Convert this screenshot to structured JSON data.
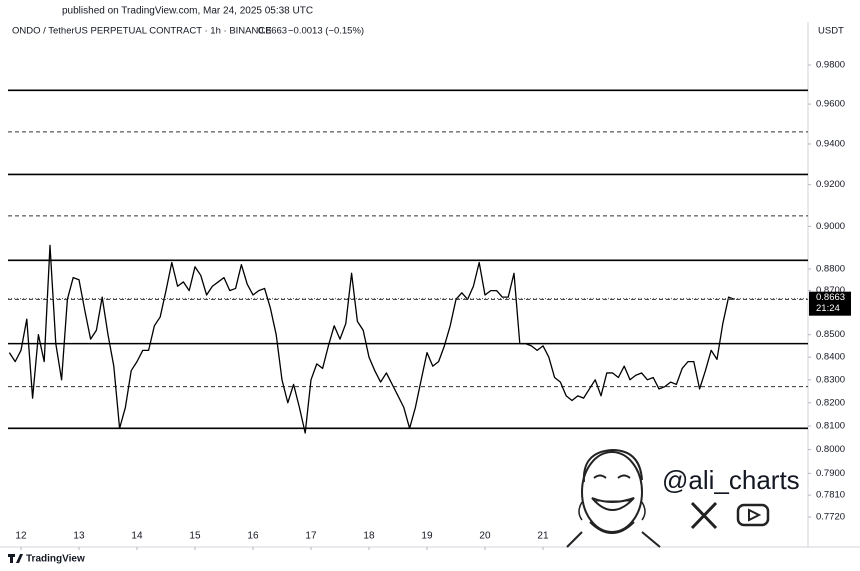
{
  "header": {
    "published": "published on TradingView.com, Mar 24, 2025 05:38 UTC",
    "symbol": "ONDO / TetherUS PERPETUAL CONTRACT · 1h · BINANCE",
    "price": "0.8663",
    "change": "−0.0013 (−0.15%)",
    "currency": "USDT"
  },
  "chart_data": {
    "type": "line",
    "color": "#000000",
    "log_scale": true,
    "x": [
      11.8,
      11.9,
      12.0,
      12.1,
      12.2,
      12.3,
      12.4,
      12.5,
      12.6,
      12.7,
      12.8,
      12.9,
      13.0,
      13.1,
      13.2,
      13.3,
      13.4,
      13.5,
      13.6,
      13.7,
      13.8,
      13.9,
      14.0,
      14.1,
      14.2,
      14.3,
      14.4,
      14.5,
      14.6,
      14.7,
      14.8,
      14.9,
      15.0,
      15.1,
      15.2,
      15.3,
      15.4,
      15.5,
      15.6,
      15.7,
      15.8,
      15.9,
      16.0,
      16.1,
      16.2,
      16.3,
      16.4,
      16.5,
      16.6,
      16.7,
      16.8,
      16.9,
      17.0,
      17.1,
      17.2,
      17.3,
      17.4,
      17.5,
      17.6,
      17.7,
      17.8,
      17.9,
      18.0,
      18.1,
      18.2,
      18.3,
      18.4,
      18.5,
      18.6,
      18.7,
      18.8,
      18.9,
      19.0,
      19.1,
      19.2,
      19.3,
      19.4,
      19.5,
      19.6,
      19.7,
      19.8,
      19.9,
      20.0,
      20.1,
      20.2,
      20.3,
      20.4,
      20.5,
      20.6,
      20.7,
      20.8,
      20.9,
      21.0,
      21.1,
      21.2,
      21.3,
      21.4,
      21.5,
      21.6,
      21.7,
      21.8,
      21.9,
      22.0,
      22.1,
      22.2,
      22.3,
      22.4,
      22.5,
      22.6,
      22.7,
      22.8,
      22.9,
      23.0,
      23.1,
      23.2,
      23.3,
      23.4,
      23.5,
      23.6,
      23.7,
      23.8,
      23.9,
      24.0,
      24.1,
      24.2,
      24.3
    ],
    "values": [
      0.842,
      0.838,
      0.843,
      0.857,
      0.822,
      0.85,
      0.838,
      0.891,
      0.846,
      0.83,
      0.866,
      0.876,
      0.875,
      0.861,
      0.848,
      0.852,
      0.867,
      0.85,
      0.836,
      0.809,
      0.818,
      0.834,
      0.838,
      0.843,
      0.843,
      0.854,
      0.858,
      0.87,
      0.883,
      0.872,
      0.874,
      0.87,
      0.881,
      0.877,
      0.868,
      0.872,
      0.874,
      0.876,
      0.87,
      0.871,
      0.882,
      0.873,
      0.868,
      0.87,
      0.871,
      0.862,
      0.85,
      0.83,
      0.82,
      0.828,
      0.818,
      0.807,
      0.83,
      0.837,
      0.835,
      0.845,
      0.854,
      0.848,
      0.855,
      0.878,
      0.856,
      0.852,
      0.84,
      0.834,
      0.829,
      0.833,
      0.828,
      0.823,
      0.818,
      0.809,
      0.818,
      0.83,
      0.842,
      0.836,
      0.838,
      0.845,
      0.854,
      0.866,
      0.869,
      0.866,
      0.872,
      0.883,
      0.868,
      0.87,
      0.87,
      0.867,
      0.867,
      0.878,
      0.846,
      0.846,
      0.845,
      0.843,
      0.845,
      0.84,
      0.831,
      0.829,
      0.823,
      0.821,
      0.823,
      0.822,
      0.826,
      0.83,
      0.823,
      0.833,
      0.833,
      0.831,
      0.836,
      0.83,
      0.832,
      0.833,
      0.83,
      0.831,
      0.826,
      0.827,
      0.829,
      0.828,
      0.835,
      0.838,
      0.838,
      0.826,
      0.834,
      0.843,
      0.839,
      0.855,
      0.867,
      0.866
    ],
    "xlim": [
      11.776,
      25.569
    ],
    "xticks": [
      12,
      13,
      14,
      15,
      16,
      17,
      18,
      19,
      20,
      21
    ],
    "ylim": [
      0.7607,
      1.0025
    ],
    "yticks": [
      {
        "value": 0.98,
        "label": "0.9800"
      },
      {
        "value": 0.96,
        "label": "0.9600"
      },
      {
        "value": 0.94,
        "label": "0.9400"
      },
      {
        "value": 0.92,
        "label": "0.9200"
      },
      {
        "value": 0.9,
        "label": "0.9000"
      },
      {
        "value": 0.88,
        "label": "0.8800"
      },
      {
        "value": 0.87,
        "label": "0.8700"
      },
      {
        "value": 0.85,
        "label": "0.8500"
      },
      {
        "value": 0.84,
        "label": "0.8400"
      },
      {
        "value": 0.83,
        "label": "0.8300"
      },
      {
        "value": 0.82,
        "label": "0.8200"
      },
      {
        "value": 0.81,
        "label": "0.8100"
      },
      {
        "value": 0.8,
        "label": "0.8000"
      },
      {
        "value": 0.79,
        "label": "0.7900"
      },
      {
        "value": 0.781,
        "label": "0.7810"
      },
      {
        "value": 0.772,
        "label": "0.7720"
      }
    ],
    "levels_solid": [
      0.967,
      0.925,
      0.884,
      0.846,
      0.809
    ],
    "levels_dashed": [
      0.946,
      0.905,
      0.866,
      0.827
    ],
    "last_price": 0.8663,
    "countdown": "21:24"
  },
  "watermark": {
    "handle": "@ali_charts"
  },
  "footer": {
    "brand": "TradingView"
  }
}
